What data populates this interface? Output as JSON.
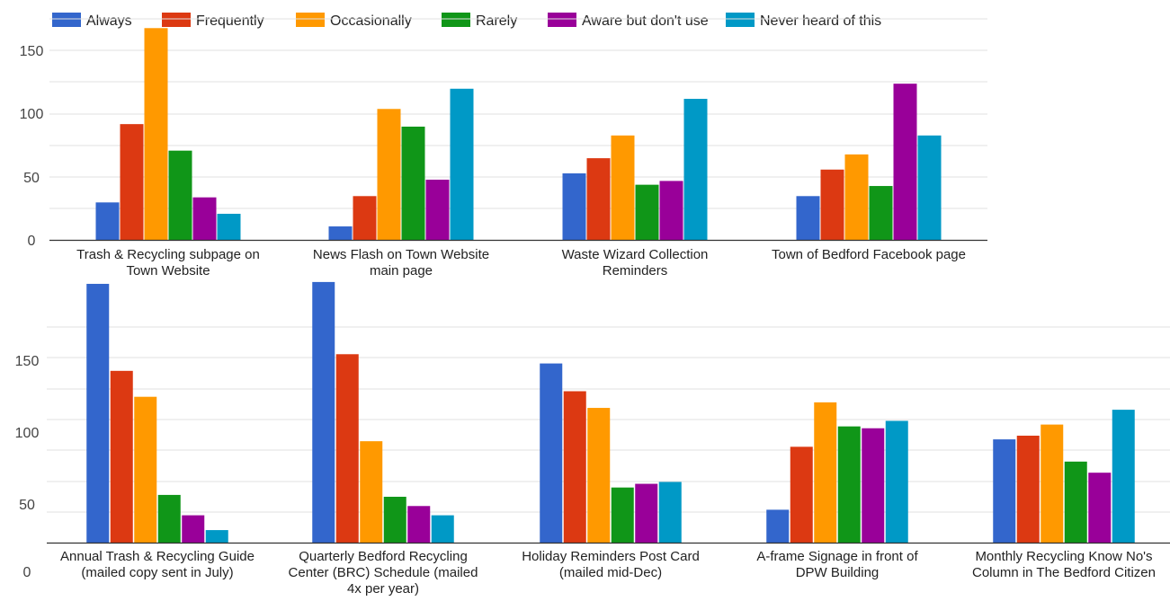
{
  "legend": [
    {
      "name": "Always",
      "color": "#3366cc"
    },
    {
      "name": "Frequently",
      "color": "#dc3912"
    },
    {
      "name": "Occasionally",
      "color": "#ff9900"
    },
    {
      "name": "Rarely",
      "color": "#109618"
    },
    {
      "name": "Aware but don't use",
      "color": "#990099"
    },
    {
      "name": "Never heard of this",
      "color": "#0099c6"
    }
  ],
  "chart_data": [
    {
      "type": "bar",
      "categories": [
        [
          "Trash & Recycling subpage on",
          "Town Website"
        ],
        [
          "News Flash on Town Website",
          "main page"
        ],
        [
          "Waste Wizard Collection",
          "Reminders"
        ],
        [
          "Town of Bedford Facebook page"
        ]
      ],
      "series": [
        {
          "name": "Always",
          "values": [
            30,
            11,
            53,
            35
          ]
        },
        {
          "name": "Frequently",
          "values": [
            92,
            35,
            65,
            56
          ]
        },
        {
          "name": "Occasionally",
          "values": [
            168,
            104,
            83,
            68
          ]
        },
        {
          "name": "Rarely",
          "values": [
            71,
            90,
            44,
            43
          ]
        },
        {
          "name": "Aware but don't use",
          "values": [
            34,
            48,
            47,
            124
          ]
        },
        {
          "name": "Never heard of this",
          "values": [
            21,
            120,
            112,
            83
          ]
        }
      ],
      "yticks": [
        "0",
        "50",
        "100",
        "150"
      ],
      "ylim": [
        0,
        175
      ],
      "grid": true
    },
    {
      "type": "bar",
      "categories": [
        [
          "Annual Trash & Recycling Guide",
          "(mailed copy sent in July)"
        ],
        [
          "Quarterly Bedford Recycling",
          "Center (BRC) Schedule (mailed",
          "4x per year)"
        ],
        [
          "Holiday Reminders Post Card",
          "(mailed mid-Dec)"
        ],
        [
          "A-frame Signage in front of",
          "DPW Building"
        ],
        [
          "Monthly Recycling Know No's",
          "Column in The Bedford Citizen"
        ]
      ],
      "series": [
        {
          "name": "Always",
          "values": [
            165,
            166,
            122,
            43,
            81
          ]
        },
        {
          "name": "Frequently",
          "values": [
            118,
            127,
            107,
            77,
            83
          ]
        },
        {
          "name": "Occasionally",
          "values": [
            104,
            80,
            98,
            101,
            89
          ]
        },
        {
          "name": "Rarely",
          "values": [
            51,
            50,
            55,
            88,
            69
          ]
        },
        {
          "name": "Aware but don't use",
          "values": [
            40,
            45,
            57,
            87,
            63
          ]
        },
        {
          "name": "Never heard of this",
          "values": [
            32,
            40,
            58,
            91,
            97
          ]
        }
      ],
      "yticks": [
        "0",
        "50",
        "100",
        "150"
      ],
      "ylim": [
        25,
        175
      ],
      "grid": true
    }
  ]
}
